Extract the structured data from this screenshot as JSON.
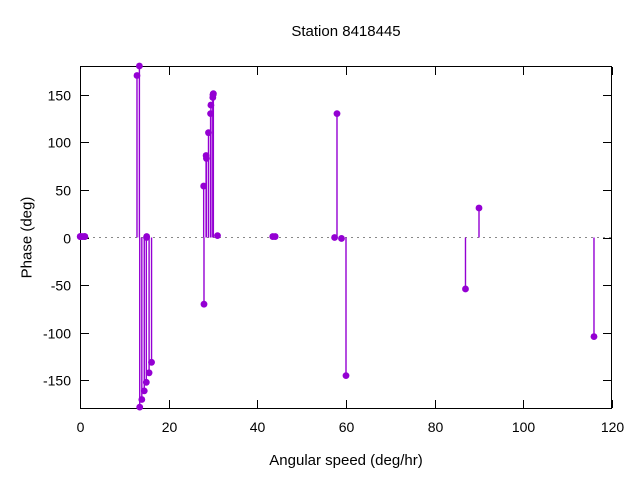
{
  "chart_data": {
    "type": "stem",
    "title": "Station 8418445",
    "xlabel": "Angular speed (deg/hr)",
    "ylabel": "Phase (deg)",
    "xlim": [
      0,
      120
    ],
    "ylim": [
      -180,
      180
    ],
    "xticks": [
      0,
      20,
      40,
      60,
      80,
      100,
      120
    ],
    "yticks": [
      150,
      100,
      50,
      0,
      -50,
      -100,
      -150
    ],
    "grid": false,
    "legend": "none",
    "zero_axis_style": "dotted",
    "series_color": "#9400d3",
    "frame_color": "#000000",
    "zero_axis_color": "#888888",
    "points": [
      [
        0.041,
        1
      ],
      [
        0.082,
        1
      ],
      [
        0.544,
        1
      ],
      [
        1.016,
        1
      ],
      [
        1.098,
        1
      ],
      [
        12.854,
        170
      ],
      [
        13.399,
        180
      ],
      [
        13.472,
        -178
      ],
      [
        13.943,
        -170
      ],
      [
        14.497,
        -161
      ],
      [
        14.959,
        -152
      ],
      [
        15.0,
        0
      ],
      [
        15.041,
        1
      ],
      [
        15.585,
        -142
      ],
      [
        16.139,
        -131
      ],
      [
        27.895,
        54
      ],
      [
        27.968,
        -70
      ],
      [
        28.439,
        86
      ],
      [
        28.512,
        83
      ],
      [
        28.984,
        110
      ],
      [
        29.456,
        130
      ],
      [
        29.528,
        139
      ],
      [
        29.959,
        147
      ],
      [
        30.0,
        150
      ],
      [
        30.041,
        150
      ],
      [
        30.082,
        151
      ],
      [
        31.016,
        2
      ],
      [
        43.476,
        1
      ],
      [
        44.025,
        1
      ],
      [
        57.424,
        0
      ],
      [
        57.968,
        130
      ],
      [
        58.984,
        -1
      ],
      [
        60.0,
        -145
      ],
      [
        86.952,
        -54
      ],
      [
        90.0,
        31
      ],
      [
        115.936,
        -104
      ]
    ]
  }
}
